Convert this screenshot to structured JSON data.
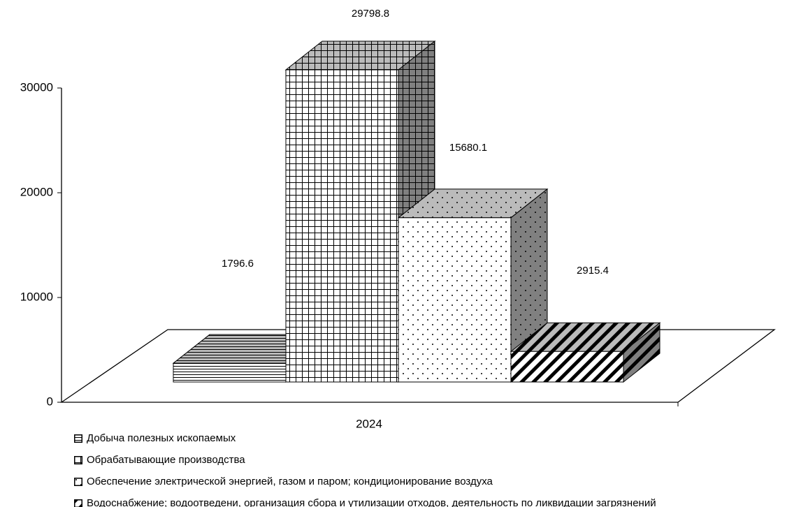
{
  "chart_data": {
    "type": "bar3d",
    "categories": [
      "2024"
    ],
    "series": [
      {
        "name": "Добыча полезных ископаемых",
        "pattern": "horizontal",
        "values": [
          1796.6
        ]
      },
      {
        "name": "Обрабатывающие производства",
        "pattern": "grid",
        "values": [
          29798.8
        ]
      },
      {
        "name": "Обеспечение электрической энергией, газом и паром; кондиционирование воздуха",
        "pattern": "dots",
        "values": [
          15680.1
        ]
      },
      {
        "name": "Водоснабжение; водоотведени, организация сбора и утилизации отходов, деятельность по ликвидации загрязнений",
        "pattern": "diagonal",
        "values": [
          2915.4
        ]
      }
    ],
    "ylim": [
      0,
      30000
    ],
    "yticks": [
      0,
      10000,
      20000,
      30000
    ]
  }
}
